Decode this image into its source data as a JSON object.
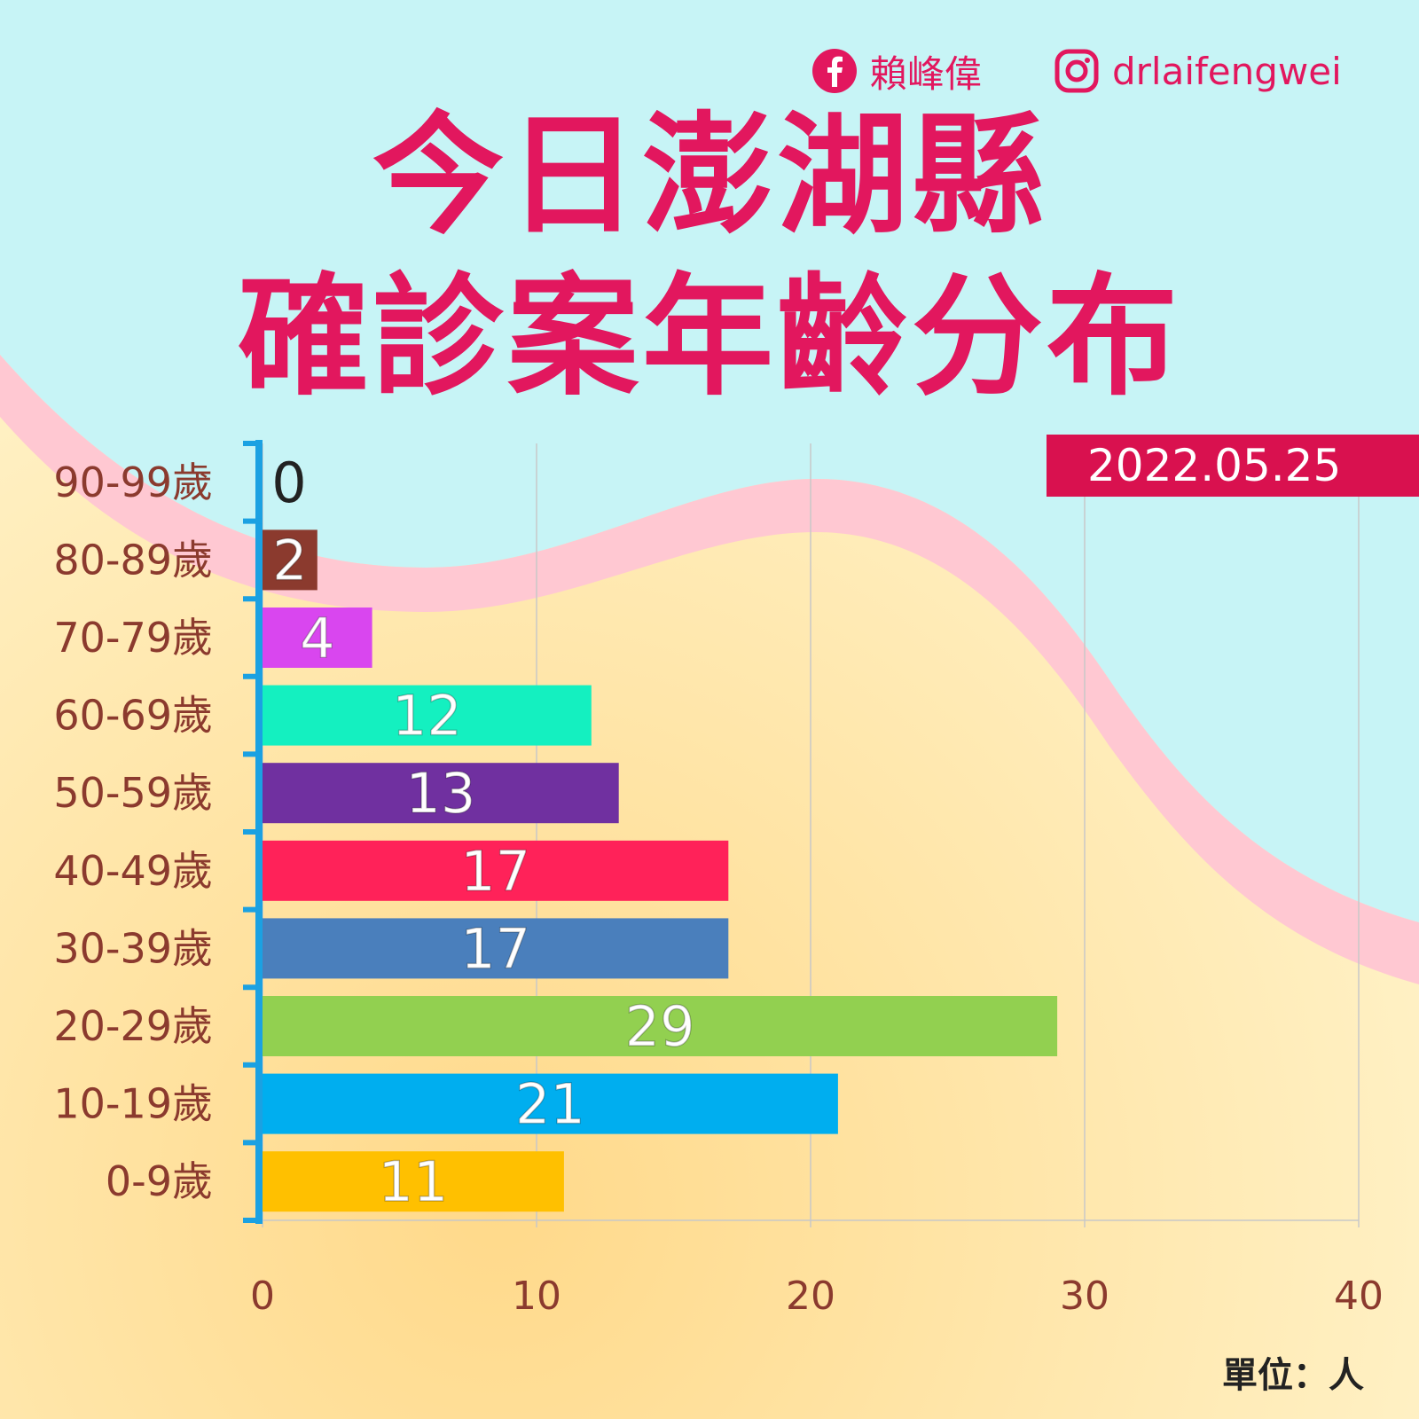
{
  "header": {
    "facebook_name": "賴峰偉",
    "instagram_handle": "drlaifengwei",
    "title_line1": "今日澎湖縣",
    "title_line2": "確診案年齡分布",
    "date": "2022.05.25",
    "unit": "單位：人"
  },
  "icons": {
    "facebook": "facebook-icon",
    "instagram": "instagram-icon"
  },
  "colors": {
    "title": "#e2175e",
    "badge": "#d9114f",
    "axis": "#1ba1e2",
    "label": "#8b3a2e"
  },
  "chart_data": {
    "type": "bar",
    "orientation": "horizontal",
    "categories": [
      "90-99歲",
      "80-89歲",
      "70-79歲",
      "60-69歲",
      "50-59歲",
      "40-49歲",
      "30-39歲",
      "20-29歲",
      "10-19歲",
      "0-9歲"
    ],
    "values": [
      0,
      2,
      4,
      12,
      13,
      17,
      17,
      29,
      21,
      11
    ],
    "bar_colors": [
      "#1a1a1a",
      "#8b3a2e",
      "#d946ef",
      "#14f0c0",
      "#7030a0",
      "#ff2259",
      "#4a7fbc",
      "#92d050",
      "#00aeef",
      "#ffc000"
    ],
    "xlim": [
      0,
      40
    ],
    "xticks": [
      0,
      10,
      20,
      30,
      40
    ],
    "title": "今日澎湖縣確診案年齡分布",
    "xlabel": "",
    "ylabel": "",
    "grid": true
  }
}
